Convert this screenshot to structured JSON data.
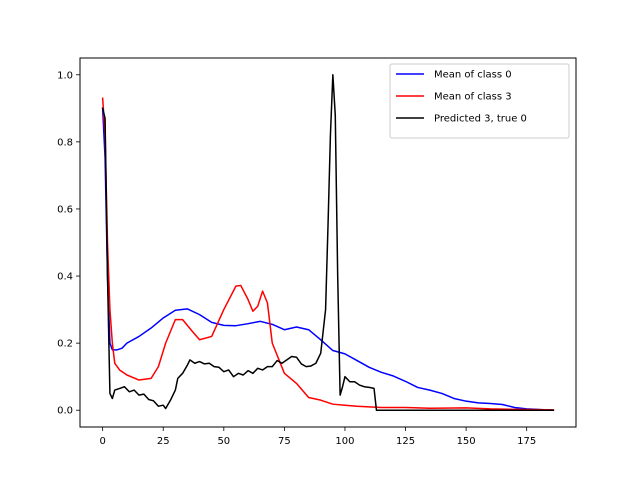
{
  "chart_data": {
    "type": "line",
    "title": "",
    "xlabel": "",
    "ylabel": "",
    "xlim": [
      -9.35,
      195.35
    ],
    "ylim": [
      -0.05,
      1.05
    ],
    "xticks": [
      0,
      25,
      50,
      75,
      100,
      125,
      150,
      175
    ],
    "yticks": [
      0.0,
      0.2,
      0.4,
      0.6,
      0.8,
      1.0
    ],
    "xtick_labels": [
      "0",
      "25",
      "50",
      "75",
      "100",
      "125",
      "150",
      "175"
    ],
    "ytick_labels": [
      "0.0",
      "0.2",
      "0.4",
      "0.6",
      "0.8",
      "1.0"
    ],
    "grid": false,
    "legend_position": "top-right",
    "series": [
      {
        "name": "Mean of class 0",
        "color": "#0000ff",
        "points": [
          [
            0,
            0.9
          ],
          [
            1,
            0.75
          ],
          [
            2,
            0.4
          ],
          [
            3,
            0.2
          ],
          [
            4,
            0.18
          ],
          [
            6,
            0.18
          ],
          [
            8,
            0.185
          ],
          [
            10,
            0.2
          ],
          [
            15,
            0.22
          ],
          [
            20,
            0.245
          ],
          [
            25,
            0.275
          ],
          [
            30,
            0.298
          ],
          [
            35,
            0.302
          ],
          [
            40,
            0.285
          ],
          [
            45,
            0.262
          ],
          [
            50,
            0.253
          ],
          [
            55,
            0.252
          ],
          [
            60,
            0.258
          ],
          [
            65,
            0.265
          ],
          [
            70,
            0.256
          ],
          [
            75,
            0.24
          ],
          [
            80,
            0.248
          ],
          [
            85,
            0.24
          ],
          [
            90,
            0.21
          ],
          [
            95,
            0.178
          ],
          [
            100,
            0.168
          ],
          [
            105,
            0.148
          ],
          [
            110,
            0.128
          ],
          [
            115,
            0.113
          ],
          [
            120,
            0.102
          ],
          [
            125,
            0.086
          ],
          [
            130,
            0.068
          ],
          [
            135,
            0.06
          ],
          [
            140,
            0.05
          ],
          [
            145,
            0.035
          ],
          [
            150,
            0.027
          ],
          [
            155,
            0.022
          ],
          [
            160,
            0.02
          ],
          [
            165,
            0.017
          ],
          [
            170,
            0.008
          ],
          [
            175,
            0.004
          ],
          [
            180,
            0.002
          ],
          [
            186,
            0.0
          ]
        ]
      },
      {
        "name": "Mean of class 3",
        "color": "#ff0000",
        "points": [
          [
            0,
            0.93
          ],
          [
            1,
            0.82
          ],
          [
            2,
            0.5
          ],
          [
            3,
            0.3
          ],
          [
            4,
            0.2
          ],
          [
            5,
            0.14
          ],
          [
            7,
            0.12
          ],
          [
            10,
            0.105
          ],
          [
            15,
            0.09
          ],
          [
            20,
            0.095
          ],
          [
            23,
            0.13
          ],
          [
            26,
            0.2
          ],
          [
            30,
            0.27
          ],
          [
            33,
            0.27
          ],
          [
            37,
            0.235
          ],
          [
            40,
            0.21
          ],
          [
            45,
            0.22
          ],
          [
            50,
            0.3
          ],
          [
            55,
            0.37
          ],
          [
            57,
            0.372
          ],
          [
            60,
            0.33
          ],
          [
            62,
            0.295
          ],
          [
            64,
            0.31
          ],
          [
            66,
            0.355
          ],
          [
            68,
            0.32
          ],
          [
            70,
            0.2
          ],
          [
            75,
            0.11
          ],
          [
            80,
            0.08
          ],
          [
            85,
            0.038
          ],
          [
            90,
            0.03
          ],
          [
            95,
            0.018
          ],
          [
            100,
            0.015
          ],
          [
            105,
            0.012
          ],
          [
            110,
            0.01
          ],
          [
            115,
            0.008
          ],
          [
            125,
            0.008
          ],
          [
            135,
            0.006
          ],
          [
            150,
            0.007
          ],
          [
            160,
            0.004
          ],
          [
            175,
            0.002
          ],
          [
            186,
            0.001
          ]
        ]
      },
      {
        "name": "Predicted 3, true 0",
        "color": "#000000",
        "points": [
          [
            0,
            0.9
          ],
          [
            1,
            0.87
          ],
          [
            2,
            0.4
          ],
          [
            3,
            0.05
          ],
          [
            4,
            0.035
          ],
          [
            5,
            0.06
          ],
          [
            7,
            0.065
          ],
          [
            9,
            0.07
          ],
          [
            11,
            0.055
          ],
          [
            13,
            0.06
          ],
          [
            15,
            0.045
          ],
          [
            17,
            0.048
          ],
          [
            19,
            0.032
          ],
          [
            21,
            0.028
          ],
          [
            23,
            0.012
          ],
          [
            25,
            0.015
          ],
          [
            26,
            0.005
          ],
          [
            28,
            0.03
          ],
          [
            30,
            0.06
          ],
          [
            31,
            0.095
          ],
          [
            33,
            0.11
          ],
          [
            35,
            0.135
          ],
          [
            36,
            0.15
          ],
          [
            38,
            0.14
          ],
          [
            40,
            0.145
          ],
          [
            42,
            0.138
          ],
          [
            44,
            0.14
          ],
          [
            46,
            0.13
          ],
          [
            48,
            0.128
          ],
          [
            50,
            0.115
          ],
          [
            52,
            0.12
          ],
          [
            54,
            0.1
          ],
          [
            56,
            0.11
          ],
          [
            58,
            0.105
          ],
          [
            60,
            0.118
          ],
          [
            62,
            0.11
          ],
          [
            64,
            0.125
          ],
          [
            66,
            0.12
          ],
          [
            68,
            0.13
          ],
          [
            70,
            0.13
          ],
          [
            72,
            0.148
          ],
          [
            74,
            0.14
          ],
          [
            76,
            0.15
          ],
          [
            78,
            0.16
          ],
          [
            80,
            0.158
          ],
          [
            82,
            0.138
          ],
          [
            84,
            0.13
          ],
          [
            86,
            0.132
          ],
          [
            88,
            0.14
          ],
          [
            90,
            0.17
          ],
          [
            92,
            0.3
          ],
          [
            93,
            0.55
          ],
          [
            94,
            0.82
          ],
          [
            95,
            1.0
          ],
          [
            96,
            0.88
          ],
          [
            97,
            0.4
          ],
          [
            98,
            0.045
          ],
          [
            99,
            0.07
          ],
          [
            100,
            0.1
          ],
          [
            102,
            0.085
          ],
          [
            104,
            0.085
          ],
          [
            106,
            0.075
          ],
          [
            108,
            0.07
          ],
          [
            110,
            0.068
          ],
          [
            112,
            0.065
          ],
          [
            113,
            0.0
          ],
          [
            125,
            0.0
          ],
          [
            150,
            0.0
          ],
          [
            175,
            0.0
          ],
          [
            186,
            0.0
          ]
        ]
      }
    ]
  }
}
